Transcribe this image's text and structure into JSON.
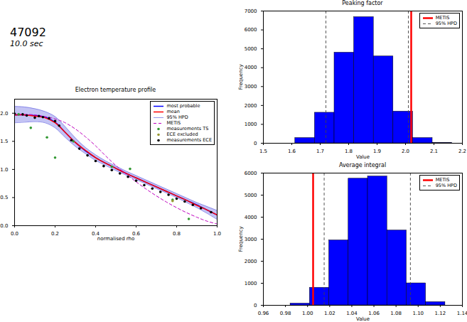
{
  "header": {
    "title": "47092",
    "subtitle": "10.0 sec"
  },
  "chart_data": [
    {
      "type": "line",
      "title": "Electron temperature profile",
      "xlabel": "normalised rho",
      "legend": "upper right",
      "x": [
        0,
        0.05,
        0.1,
        0.15,
        0.2,
        0.25,
        0.3,
        0.35,
        0.4,
        0.45,
        0.5,
        0.55,
        0.6,
        0.65,
        0.7,
        0.75,
        0.8,
        0.85,
        0.9,
        0.95,
        1.0
      ],
      "xlim": [
        0,
        1
      ],
      "xticks": [
        {
          "value": 0,
          "label": "0.0"
        },
        0.2,
        0.4,
        0.6,
        0.8,
        {
          "value": 1,
          "label": "1.0"
        }
      ],
      "ylim": [
        0,
        2.25
      ],
      "yticks": [
        {
          "value": 0,
          "label": "0.0"
        },
        0.5,
        {
          "value": 1,
          "label": "1.0"
        },
        1.5,
        {
          "value": 2,
          "label": "2.0"
        }
      ],
      "series": [
        {
          "name": "most probable",
          "type": "line",
          "color": "#0000ff",
          "values": [
            1.97,
            1.97,
            1.96,
            1.93,
            1.84,
            1.66,
            1.48,
            1.33,
            1.21,
            1.11,
            1.02,
            0.93,
            0.85,
            0.77,
            0.69,
            0.61,
            0.53,
            0.45,
            0.37,
            0.28,
            0.19
          ]
        },
        {
          "name": "mean",
          "type": "line",
          "color": "#ff0000",
          "values": [
            1.97,
            1.97,
            1.95,
            1.92,
            1.83,
            1.66,
            1.48,
            1.34,
            1.21,
            1.11,
            1.02,
            0.93,
            0.85,
            0.77,
            0.69,
            0.61,
            0.53,
            0.45,
            0.36,
            0.28,
            0.19
          ]
        },
        {
          "name": "95% HPD",
          "type": "band",
          "color": "#7a7ae6",
          "lower": [
            1.83,
            1.84,
            1.85,
            1.83,
            1.74,
            1.57,
            1.41,
            1.28,
            1.16,
            1.07,
            0.98,
            0.9,
            0.82,
            0.74,
            0.66,
            0.58,
            0.5,
            0.41,
            0.32,
            0.22,
            0.11
          ],
          "upper": [
            2.12,
            2.11,
            2.08,
            2.03,
            1.94,
            1.76,
            1.56,
            1.39,
            1.26,
            1.15,
            1.06,
            0.97,
            0.89,
            0.81,
            0.73,
            0.65,
            0.57,
            0.49,
            0.41,
            0.34,
            0.27
          ]
        },
        {
          "name": "METIS",
          "type": "line",
          "color": "#bf00bf",
          "line_style": "dashed",
          "values": [
            1.98,
            1.98,
            1.97,
            1.94,
            1.9,
            1.83,
            1.72,
            1.58,
            1.42,
            1.24,
            1.07,
            0.92,
            0.78,
            0.65,
            0.53,
            0.42,
            0.32,
            0.23,
            0.15,
            0.08,
            0.03
          ]
        },
        {
          "name": "measurements TS",
          "type": "scatter",
          "marker": "circle",
          "color": "#339933",
          "x": [
            0.02,
            0.08,
            0.16,
            0.2,
            0.29,
            0.48,
            0.57,
            0.78,
            0.86
          ],
          "values": [
            1.98,
            1.74,
            1.57,
            1.21,
            1.5,
            1.05,
            1.01,
            0.46,
            0.12
          ]
        },
        {
          "name": "ECE excluded",
          "type": "scatter",
          "marker": "circle",
          "color": "#999933",
          "x": [
            0.78
          ],
          "values": [
            0.44
          ]
        },
        {
          "name": "measurements ECE",
          "type": "scatter",
          "marker": "circle",
          "color": "#000000",
          "x": [
            0,
            0.04,
            0.06,
            0.1,
            0.12,
            0.14,
            0.17,
            0.2,
            0.22,
            0.28,
            0.32,
            0.36,
            0.4,
            0.44,
            0.48,
            0.52,
            0.56,
            0.6,
            0.64,
            0.68,
            0.72,
            0.76,
            0.8,
            0.84,
            0.88,
            0.92,
            0.97
          ],
          "values": [
            1.99,
            1.98,
            1.96,
            1.92,
            1.95,
            1.93,
            1.91,
            1.86,
            1.78,
            1.52,
            1.37,
            1.25,
            1.15,
            1.06,
            0.99,
            0.93,
            0.87,
            0.8,
            0.72,
            0.66,
            0.6,
            0.55,
            0.48,
            0.43,
            0.37,
            0.31,
            0.24
          ]
        }
      ]
    },
    {
      "type": "histogram",
      "title": "Peaking factor",
      "xlabel": "Value",
      "ylabel": "Frequency",
      "legend": "upper right",
      "color": "#0000ff",
      "bins": [
        1.612,
        1.681,
        1.75,
        1.819,
        1.888,
        1.957,
        2.026,
        2.095,
        2.164
      ],
      "counts": [
        280,
        1620,
        4800,
        6680,
        4600,
        1680,
        280,
        20
      ],
      "xlim": [
        1.5,
        2.2
      ],
      "xticks": [
        1.5,
        1.6,
        1.7,
        1.8,
        1.9,
        {
          "value": 2,
          "label": "2.0"
        },
        2.1,
        2.2
      ],
      "ylim": [
        0,
        7000
      ],
      "yticks": [
        0,
        1000,
        2000,
        3000,
        4000,
        5000,
        6000,
        7000
      ],
      "vlines": [
        {
          "name": "METIS",
          "color": "#ff0000",
          "line_style": "solid",
          "values": [
            2.02
          ]
        },
        {
          "name": "95% HPD",
          "color": "#444444",
          "line_style": "dashed",
          "values": [
            1.72,
            2.01
          ]
        }
      ]
    },
    {
      "type": "histogram",
      "title": "Average integral",
      "xlabel": "Value",
      "ylabel": "Frequency",
      "legend": "upper right",
      "color": "#0000ff",
      "bins": [
        0.9845,
        1.002,
        1.0195,
        1.037,
        1.0545,
        1.072,
        1.0895,
        1.107,
        1.1245
      ],
      "counts": [
        80,
        800,
        2950,
        5750,
        5850,
        3400,
        1000,
        150
      ],
      "xlim": [
        0.96,
        1.14
      ],
      "xticks": [
        0.96,
        0.98,
        {
          "value": 1,
          "label": "1.00"
        },
        1.02,
        1.04,
        1.06,
        1.08,
        {
          "value": 1.1,
          "label": "1.10"
        },
        1.12,
        1.14
      ],
      "ylim": [
        0,
        6000
      ],
      "yticks": [
        0,
        1000,
        2000,
        3000,
        4000,
        5000,
        6000
      ],
      "vlines": [
        {
          "name": "METIS",
          "color": "#ff0000",
          "line_style": "solid",
          "values": [
            1.005
          ]
        },
        {
          "name": "95% HPD",
          "color": "#444444",
          "line_style": "dashed",
          "values": [
            1.015,
            1.093
          ]
        }
      ]
    }
  ]
}
